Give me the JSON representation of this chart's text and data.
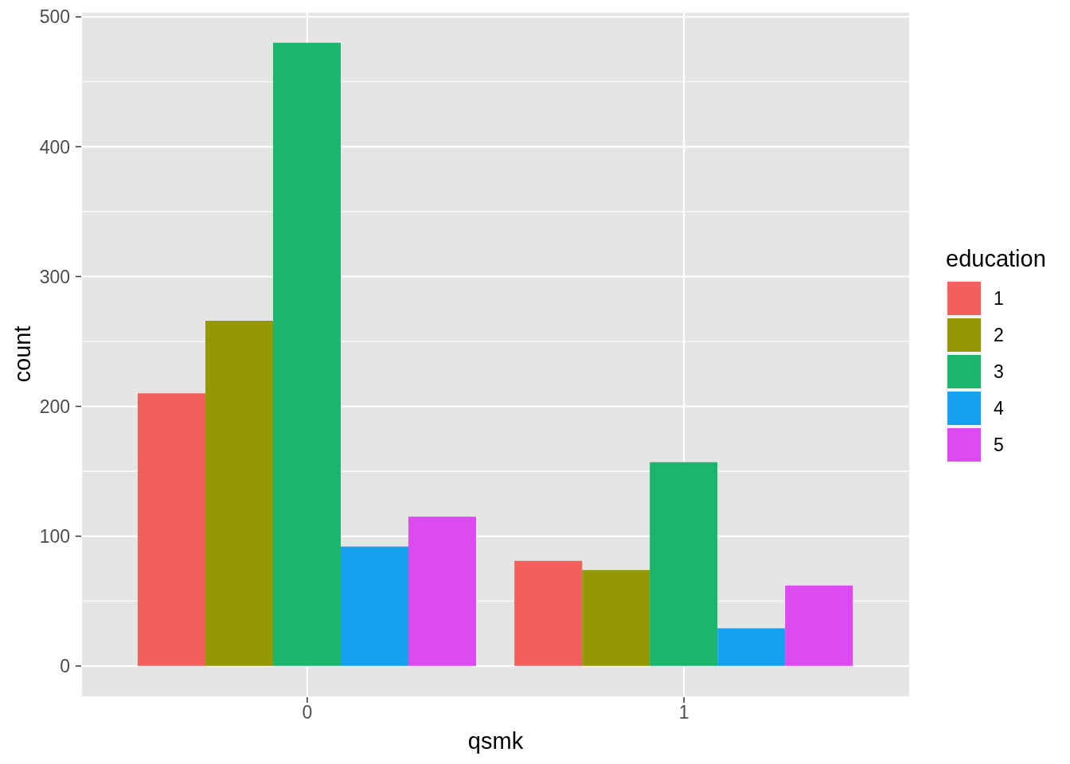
{
  "chart_data": {
    "type": "bar",
    "xlabel": "qsmk",
    "ylabel": "count",
    "legend_title": "education",
    "categories": [
      "0",
      "1"
    ],
    "series": [
      {
        "name": "1",
        "color": "#f3605b",
        "values": [
          210,
          81
        ]
      },
      {
        "name": "2",
        "color": "#939804",
        "values": [
          266,
          74
        ]
      },
      {
        "name": "3",
        "color": "#1bb56c",
        "values": [
          480,
          157
        ]
      },
      {
        "name": "4",
        "color": "#15a0f0",
        "values": [
          92,
          29
        ]
      },
      {
        "name": "5",
        "color": "#dd4af0",
        "values": [
          115,
          62
        ]
      }
    ],
    "ylim": [
      -24,
      504
    ],
    "yticks": [
      0,
      100,
      200,
      300,
      400,
      500
    ],
    "grid": true,
    "legend": "right"
  }
}
